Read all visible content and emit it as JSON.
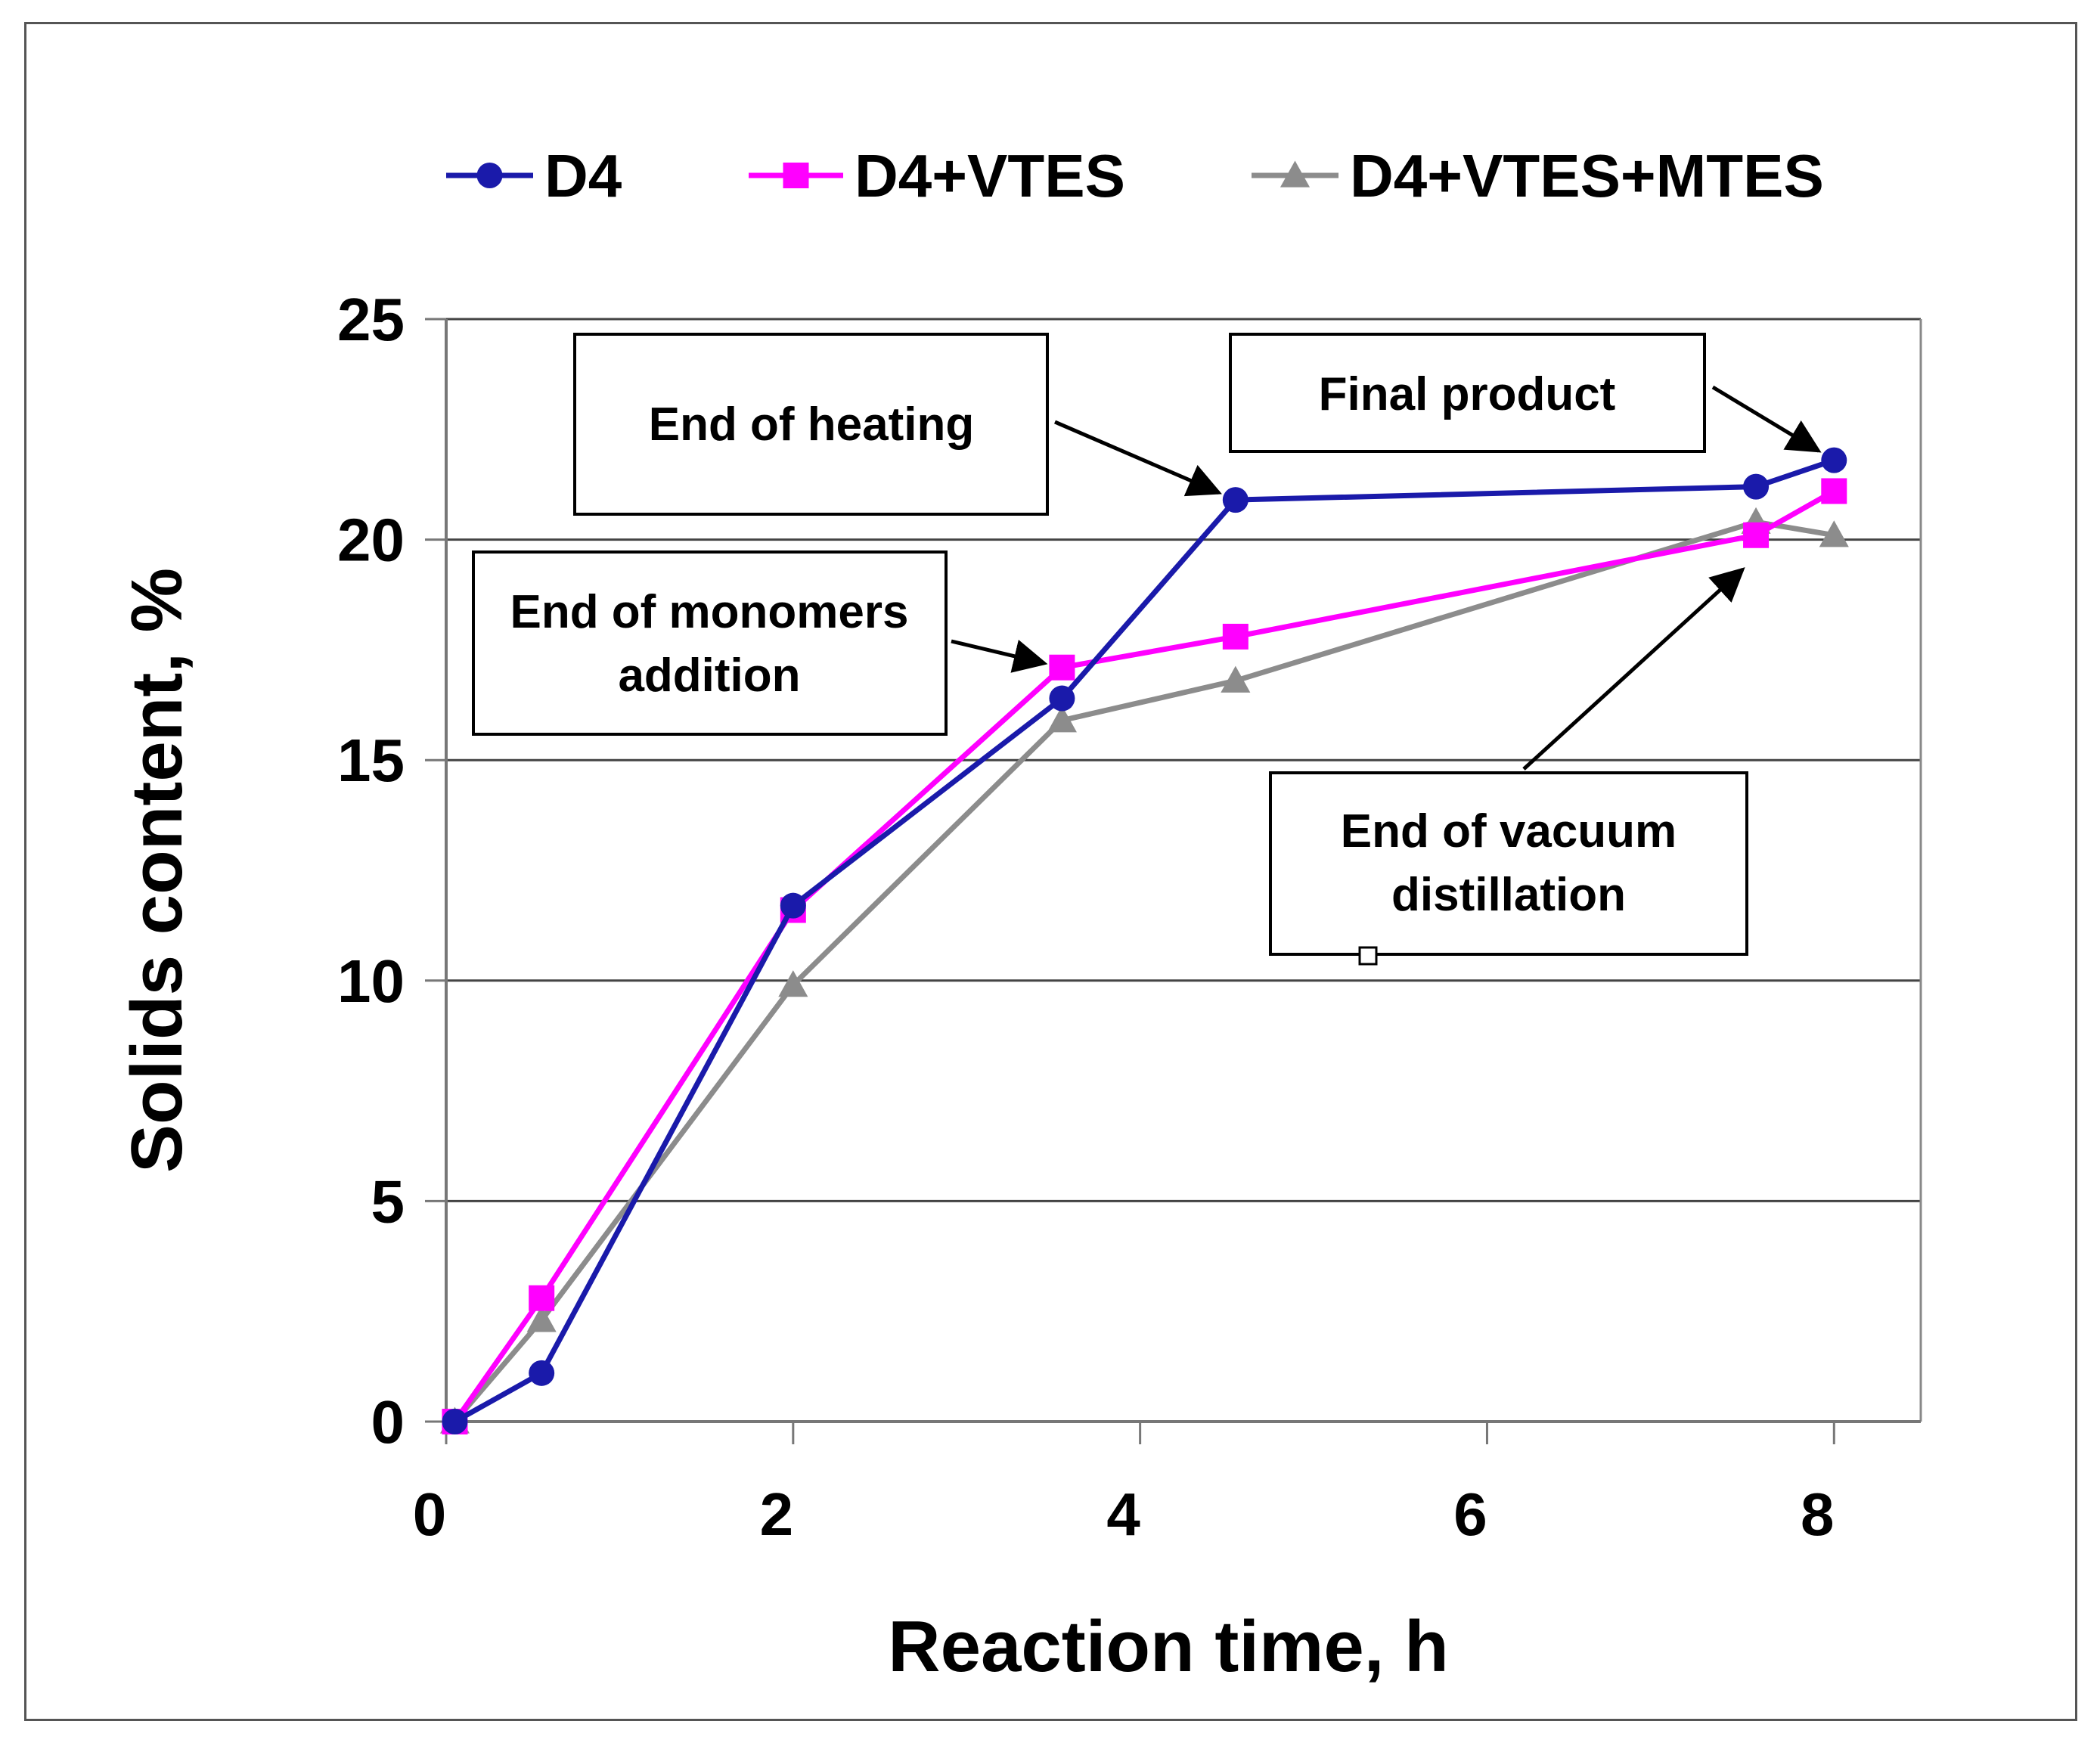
{
  "chart_data": {
    "type": "line",
    "title": "",
    "xlabel": "Reaction time, h",
    "ylabel": "Solids content, %",
    "xlim": [
      0,
      8.5
    ],
    "ylim": [
      0,
      25
    ],
    "x_ticks": [
      "0",
      "2",
      "4",
      "6",
      "8"
    ],
    "y_ticks": [
      "0",
      "5",
      "10",
      "15",
      "20",
      "25"
    ],
    "grid": "horizontal",
    "legend_position": "top",
    "series": [
      {
        "name": "D4",
        "color": "#1a1aaa",
        "marker": "circle",
        "x": [
          0.05,
          0.55,
          2.0,
          3.55,
          4.55,
          7.55,
          8.0
        ],
        "y": [
          0,
          1.1,
          11.7,
          16.4,
          20.9,
          21.2,
          21.8
        ]
      },
      {
        "name": "D4+VTES",
        "color": "#ff00ff",
        "marker": "square",
        "x": [
          0.05,
          0.55,
          2.0,
          3.55,
          4.55,
          7.55,
          8.0
        ],
        "y": [
          0,
          2.8,
          11.6,
          17.1,
          17.8,
          20.1,
          21.1
        ]
      },
      {
        "name": "D4+VTES+MTES",
        "color": "#8c8c8c",
        "marker": "triangle",
        "x": [
          0.05,
          0.55,
          2.0,
          3.55,
          4.55,
          7.55,
          8.0
        ],
        "y": [
          0,
          2.3,
          9.9,
          15.9,
          16.8,
          20.4,
          20.1
        ]
      }
    ],
    "annotations": [
      {
        "lines": [
          "End of heating"
        ],
        "points_to": [
          4.55,
          20.9
        ]
      },
      {
        "lines": [
          "Final product"
        ],
        "points_to": [
          8.0,
          21.8
        ]
      },
      {
        "lines": [
          "End of monomers",
          "addition"
        ],
        "points_to": [
          3.55,
          17.1
        ]
      },
      {
        "lines": [
          "End of vacuum",
          "distillation"
        ],
        "points_to": [
          7.55,
          19.6
        ]
      }
    ]
  }
}
